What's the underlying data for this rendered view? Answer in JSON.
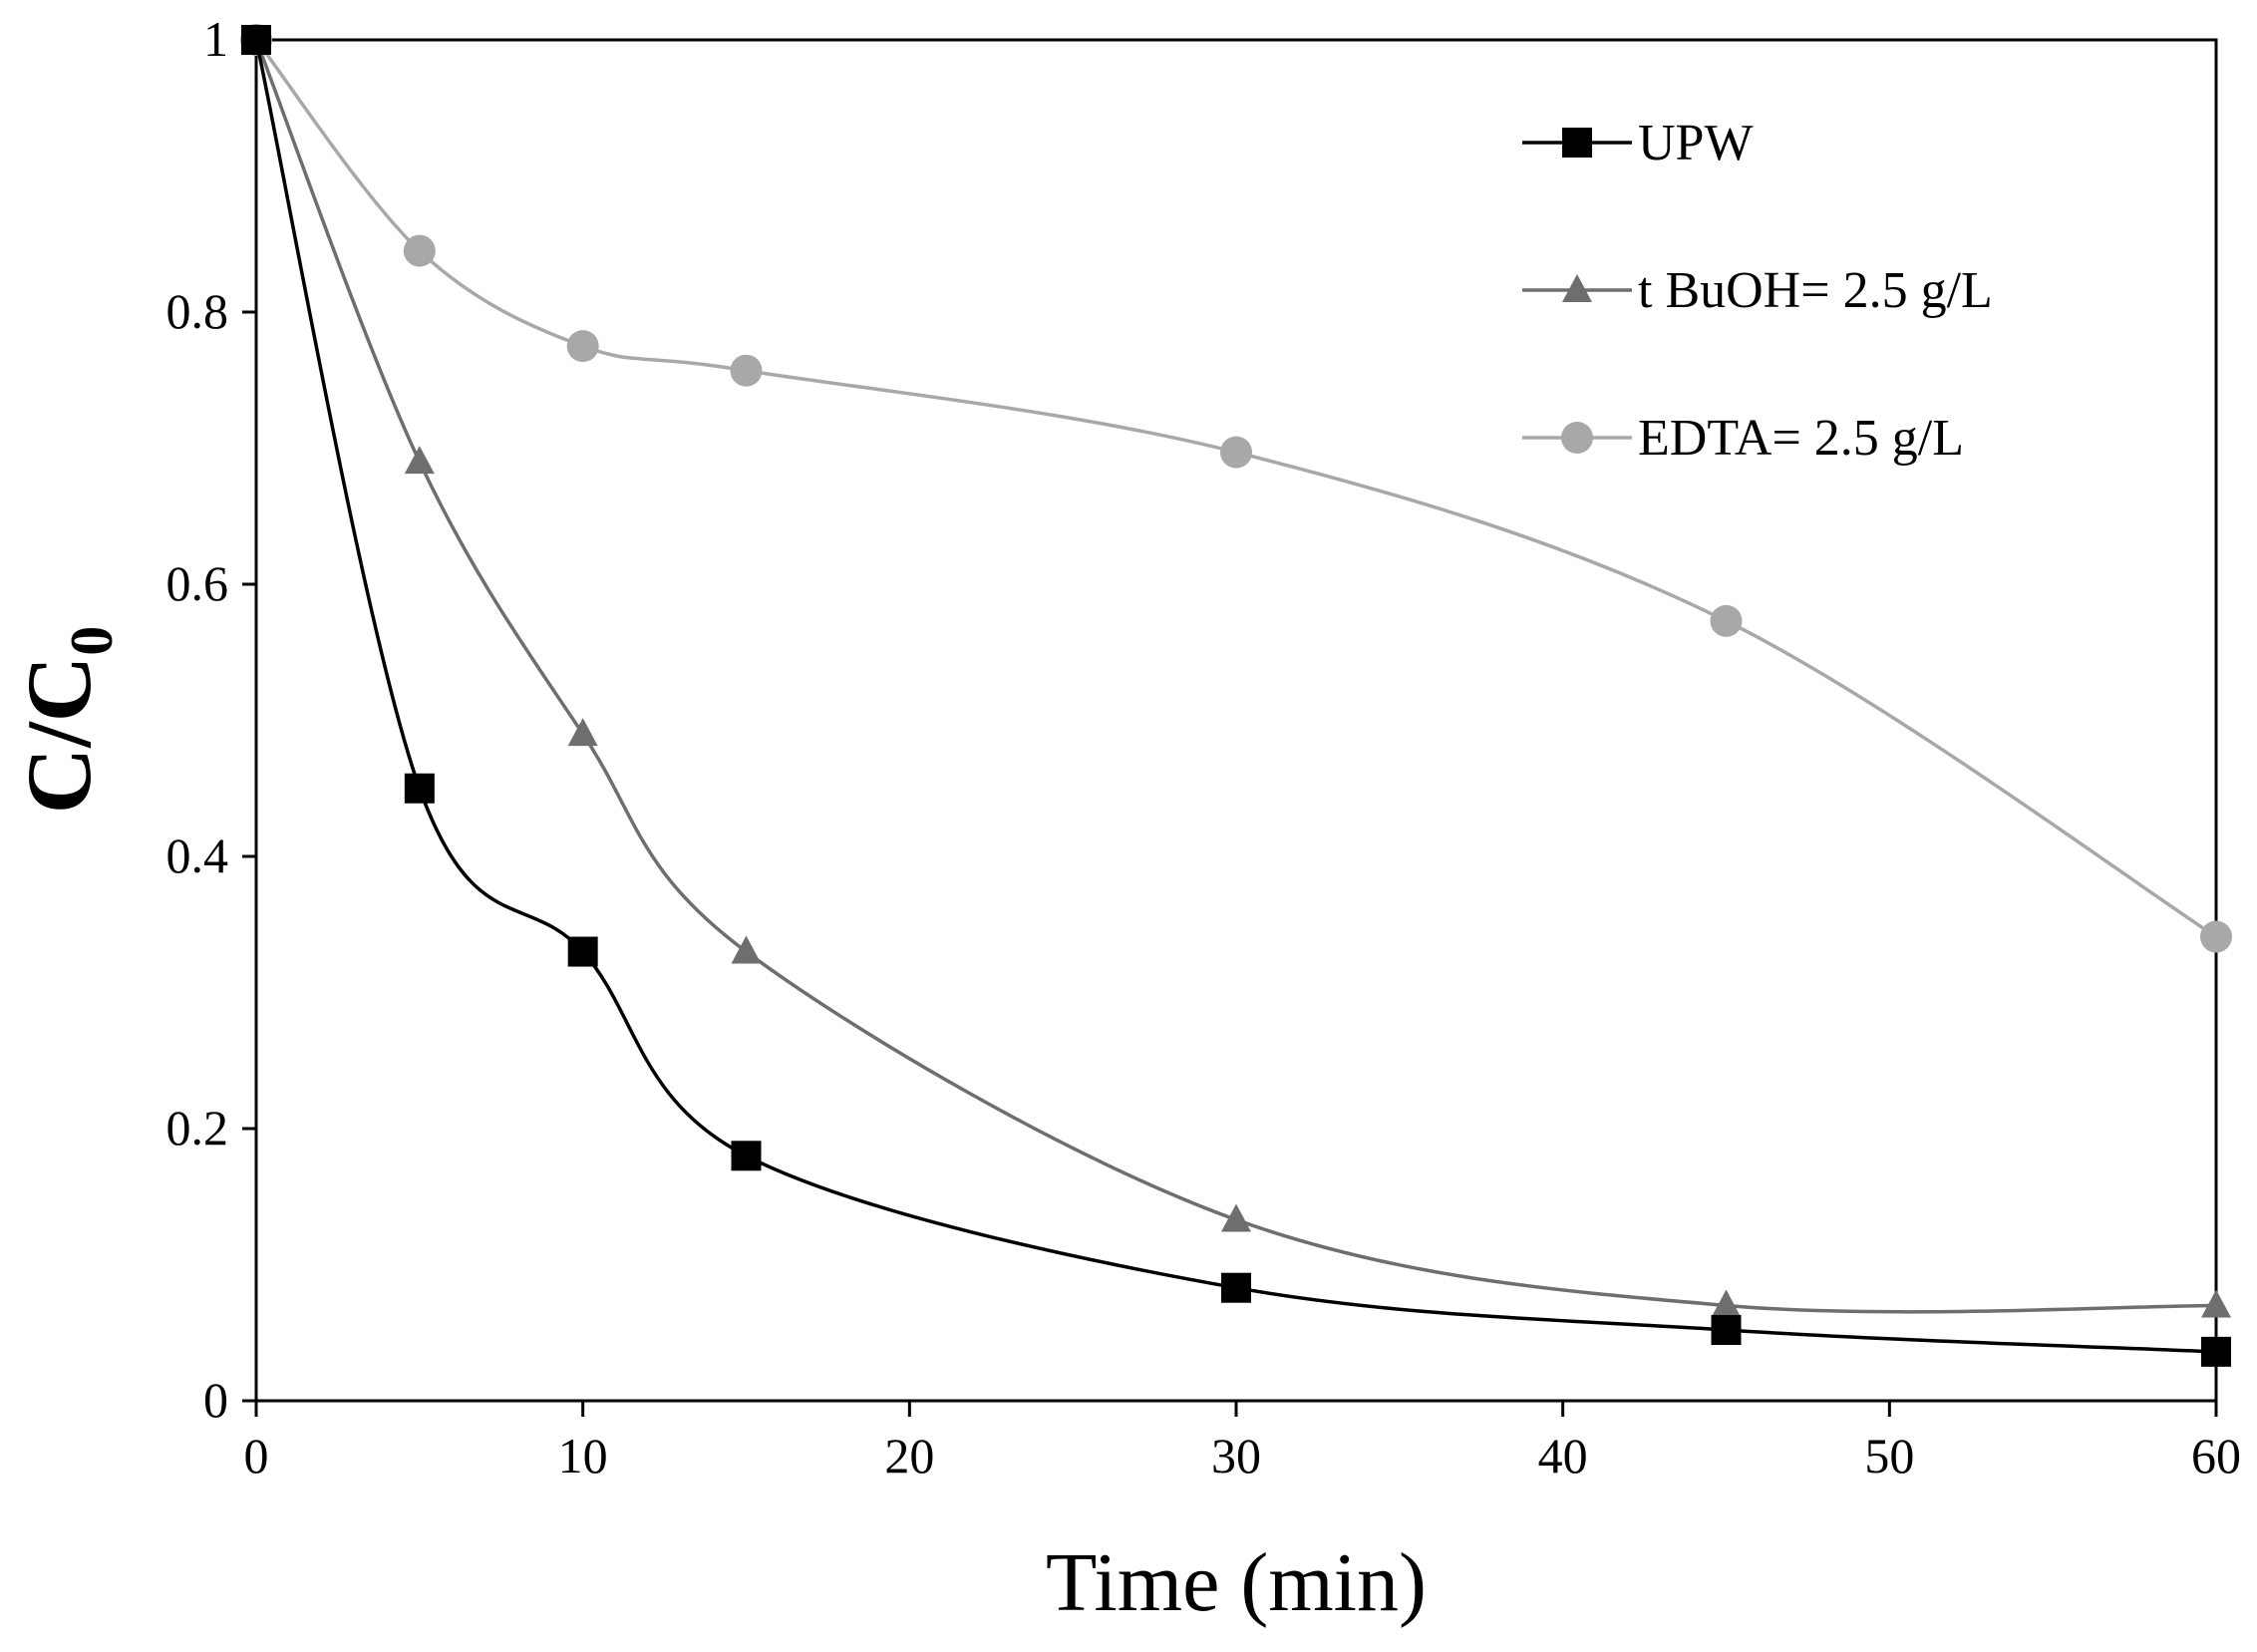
{
  "chart_data": {
    "type": "line",
    "xlabel": "Time (min)",
    "ylabel_main": "C/C",
    "ylabel_sub": "0",
    "xlim": [
      0,
      60
    ],
    "ylim": [
      0,
      1
    ],
    "xticks": [
      "0",
      "10",
      "20",
      "30",
      "40",
      "50",
      "60"
    ],
    "yticks": [
      "0",
      "0.2",
      "0.4",
      "0.6",
      "0.8",
      "1"
    ],
    "legend_position": "top-right",
    "grid": false,
    "series": [
      {
        "name": "UPW",
        "marker": "square",
        "color": "#000000",
        "x": [
          0,
          5,
          10,
          15,
          30,
          45,
          60
        ],
        "y": [
          1.0,
          0.45,
          0.33,
          0.18,
          0.083,
          0.052,
          0.036
        ]
      },
      {
        "name": "t BuOH= 2.5 g/L",
        "marker": "triangle",
        "color": "#6e6e6e",
        "x": [
          0,
          5,
          10,
          15,
          30,
          45,
          60
        ],
        "y": [
          1.0,
          0.69,
          0.49,
          0.33,
          0.133,
          0.07,
          0.07
        ]
      },
      {
        "name": "EDTA= 2.5 g/L",
        "marker": "circle",
        "color": "#a8a8a8",
        "x": [
          0,
          5,
          10,
          15,
          30,
          45,
          60
        ],
        "y": [
          1.0,
          0.845,
          0.775,
          0.757,
          0.697,
          0.573,
          0.341
        ]
      }
    ]
  }
}
